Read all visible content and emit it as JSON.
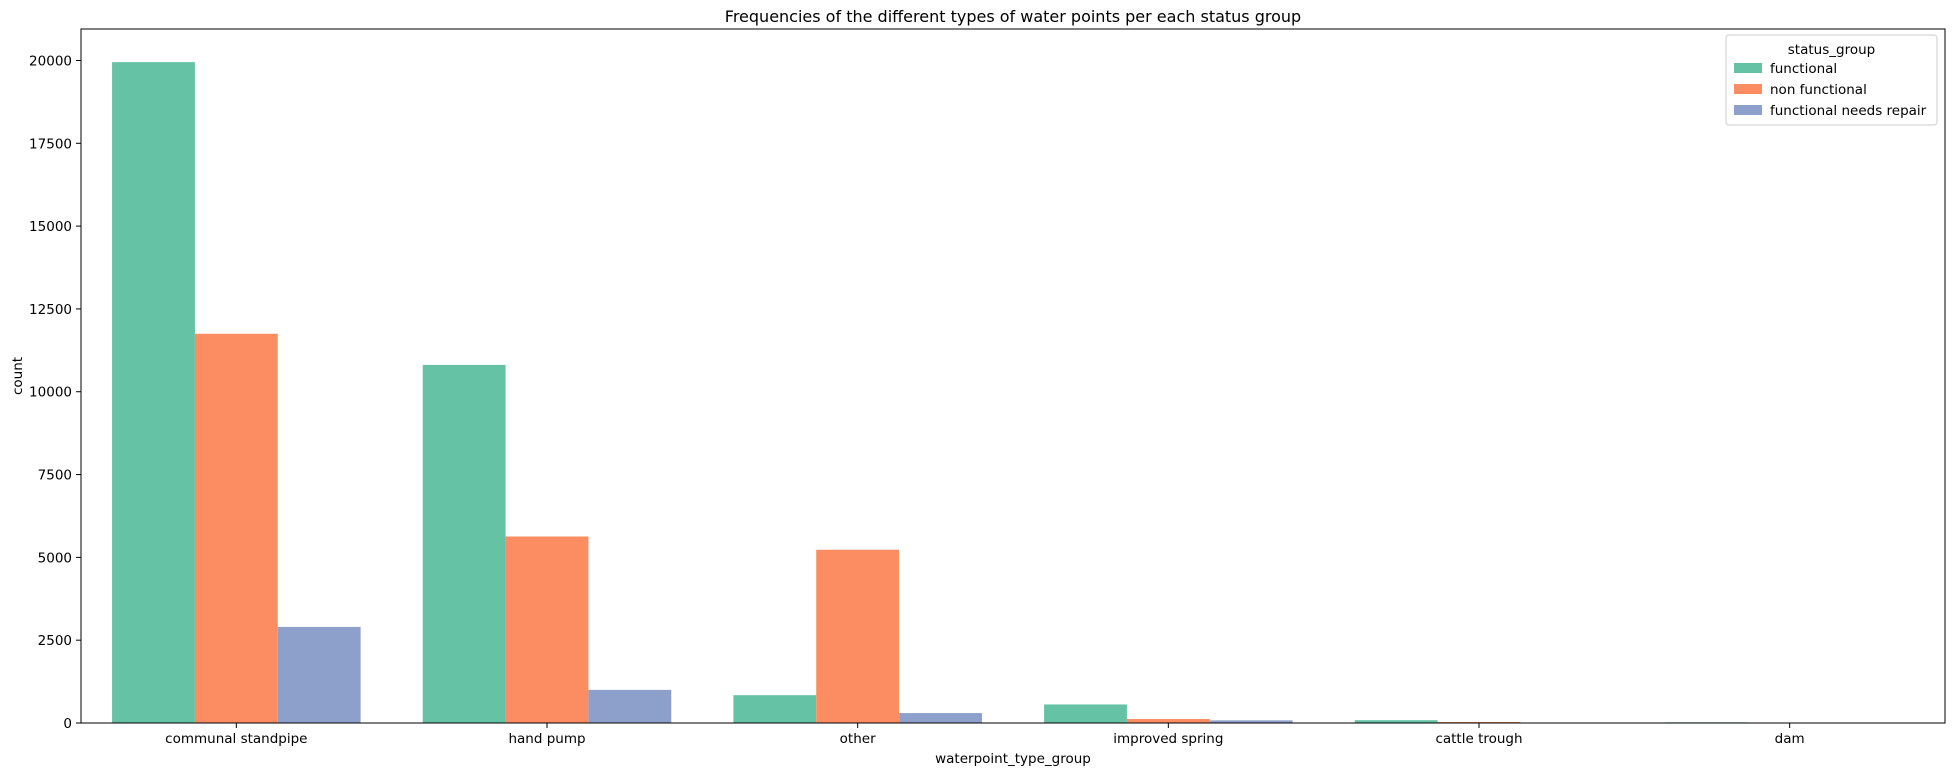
{
  "chart_data": {
    "type": "bar",
    "title": "Frequencies of the different types of water points per each status group",
    "xlabel": "waterpoint_type_group",
    "ylabel": "count",
    "categories": [
      "communal standpipe",
      "hand pump",
      "other",
      "improved spring",
      "cattle trough",
      "dam"
    ],
    "series": [
      {
        "name": "functional",
        "color": "#66c2a5",
        "values": [
          19950,
          10810,
          840,
          560,
          85,
          20
        ]
      },
      {
        "name": "non functional",
        "color": "#fc8d62",
        "values": [
          11750,
          5630,
          5230,
          120,
          30,
          0
        ]
      },
      {
        "name": "functional needs repair",
        "color": "#8da0cb",
        "values": [
          2900,
          1000,
          300,
          80,
          0,
          0
        ]
      }
    ],
    "ylim": [
      0,
      20950
    ],
    "yticks": [
      0,
      2500,
      5000,
      7500,
      10000,
      12500,
      15000,
      17500,
      20000
    ],
    "legend": {
      "title": "status_group",
      "position": "top-right"
    },
    "grid": false
  }
}
